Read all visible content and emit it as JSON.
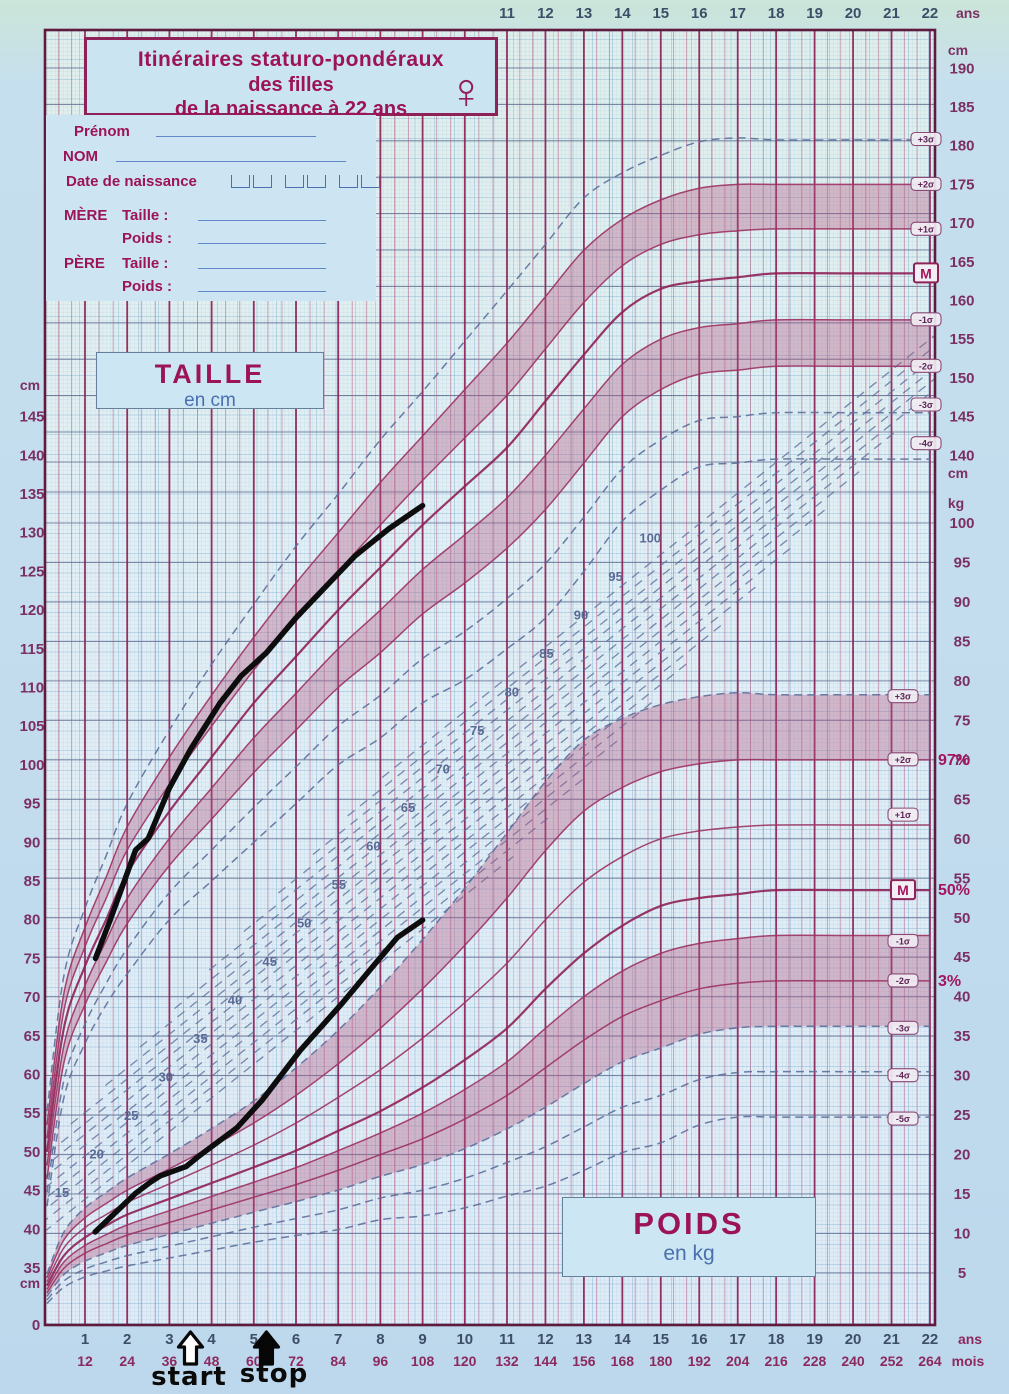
{
  "title": {
    "line1": "Itinéraires staturo-pondéraux",
    "line2": "des filles",
    "line3": "de la naissance à 22 ans",
    "gender_symbol": "♀"
  },
  "form": {
    "prenom": "Prénom",
    "nom": "NOM",
    "dob": "Date de naissance",
    "mere": "MÈRE",
    "pere": "PÈRE",
    "taille": "Taille :",
    "poids": "Poids :"
  },
  "sections": {
    "height": {
      "title": "TAILLE",
      "unit": "en cm"
    },
    "weight": {
      "title": "POIDS",
      "unit": "en kg"
    }
  },
  "annotations": {
    "start": "start",
    "stop": "stop"
  },
  "chart_data": {
    "type": "line",
    "chart_kind": "growth-reference-chart-girls-0-22y",
    "title": "Itinéraires staturo-pondéraux des filles de la naissance à 22 ans",
    "x_unit_years": "ans",
    "x_unit_months": "mois",
    "top_axis_years": [
      11,
      12,
      13,
      14,
      15,
      16,
      17,
      18,
      19,
      20,
      21,
      22
    ],
    "bottom_axis_years": [
      1,
      2,
      3,
      4,
      5,
      6,
      7,
      8,
      9,
      10,
      11,
      12,
      13,
      14,
      15,
      16,
      17,
      18,
      19,
      20,
      21,
      22
    ],
    "bottom_axis_months": [
      12,
      24,
      36,
      48,
      60,
      72,
      84,
      96,
      108,
      120,
      132,
      144,
      156,
      168,
      180,
      192,
      204,
      216,
      228,
      240,
      252,
      264
    ],
    "left_height_ticks_cm": [
      145,
      140,
      135,
      130,
      125,
      120,
      115,
      110,
      105,
      100,
      95,
      90,
      85,
      80,
      75,
      70,
      65,
      60,
      55,
      50,
      45,
      40,
      35
    ],
    "right_height_ticks_cm": [
      190,
      185,
      180,
      175,
      170,
      165,
      160,
      155,
      150,
      145,
      140
    ],
    "right_weight_ticks_kg": [
      100,
      95,
      90,
      85,
      80,
      75,
      70,
      65,
      60,
      55,
      50,
      45,
      40,
      35,
      30,
      25,
      20,
      15,
      10,
      5
    ],
    "unit_labels": {
      "cm": "cm",
      "kg": "kg",
      "origin": "0"
    },
    "diagonal_weight_guides_kg": [
      15,
      20,
      25,
      30,
      35,
      40,
      45,
      50,
      55,
      60,
      65,
      70,
      75,
      80,
      85,
      90,
      95,
      100
    ],
    "ages": [
      0,
      0.5,
      1,
      1.5,
      2,
      3,
      4,
      5,
      6,
      7,
      8,
      9,
      10,
      11,
      12,
      13,
      14,
      15,
      16,
      17,
      18,
      20,
      22
    ],
    "height_reference_cm": {
      "M": [
        50,
        66,
        74,
        80,
        86,
        94,
        101,
        108,
        114,
        120,
        125.5,
        131,
        136,
        141,
        147,
        153,
        158.5,
        161.5,
        162.5,
        163,
        163.5,
        163.5,
        163.5
      ],
      "plus2sigma": [
        53.5,
        70.5,
        79,
        85.5,
        92,
        101,
        109,
        116.5,
        123.5,
        130,
        136.5,
        142.5,
        148.5,
        154.5,
        160.5,
        166.5,
        170.5,
        173,
        174.5,
        175,
        175,
        175,
        175
      ],
      "minus2sigma": [
        46.5,
        61.5,
        69,
        74.5,
        79.5,
        87,
        93,
        99,
        104.5,
        110,
        114.5,
        119.5,
        123.5,
        128,
        133,
        139,
        145,
        148.5,
        150.5,
        151,
        151.5,
        151.5,
        151.5
      ]
    },
    "weight_reference_kg": {
      "M": [
        3.4,
        7.2,
        9.5,
        11,
        12.4,
        14.4,
        16.4,
        18.4,
        20.5,
        23,
        25.5,
        28.5,
        32,
        36,
        41,
        45.5,
        49,
        51.5,
        52.5,
        53,
        53.5,
        53.5,
        53.5
      ],
      "plus2sigma": [
        4.4,
        9.2,
        12,
        13.8,
        15.5,
        18.2,
        21,
        24,
        27.5,
        31.5,
        36,
        41,
        46.5,
        52.5,
        58.5,
        63.5,
        66.5,
        68.5,
        69.5,
        70,
        70,
        70,
        70
      ],
      "minus2sigma": [
        2.5,
        5.6,
        7.5,
        8.7,
        9.8,
        11.4,
        13,
        14.6,
        16.2,
        18,
        20,
        22,
        24.5,
        27.5,
        31,
        34.5,
        37.5,
        39.5,
        41,
        41.7,
        42,
        42,
        42
      ]
    },
    "height_end_labels": [
      {
        "text": "+3σ",
        "cm": 180.8
      },
      {
        "text": "+2σ",
        "cm": 175
      },
      {
        "text": "+1σ",
        "cm": 169.2
      },
      {
        "text": "M",
        "cm": 163.5,
        "main": true
      },
      {
        "text": "-1σ",
        "cm": 157.5
      },
      {
        "text": "-2σ",
        "cm": 151.5
      },
      {
        "text": "-3σ",
        "cm": 146.5
      },
      {
        "text": "-4σ",
        "cm": 141.5
      }
    ],
    "weight_end_labels": [
      {
        "text": "+3σ",
        "kg": 78
      },
      {
        "text": "+2σ",
        "kg": 70
      },
      {
        "text": "+1σ",
        "kg": 63
      },
      {
        "text": "M",
        "kg": 53.5,
        "main": true
      },
      {
        "text": "-1σ",
        "kg": 47
      },
      {
        "text": "-2σ",
        "kg": 42
      },
      {
        "text": "-3σ",
        "kg": 36
      },
      {
        "text": "-4σ",
        "kg": 30
      },
      {
        "text": "-5σ",
        "kg": 24.5
      }
    ],
    "percentile_labels": [
      {
        "text": "97%",
        "kg": 70
      },
      {
        "text": "50%",
        "kg": 53.5
      },
      {
        "text": "3%",
        "kg": 42
      }
    ],
    "patient_height_cm": [
      [
        1.25,
        75
      ],
      [
        1.6,
        80
      ],
      [
        2.2,
        89
      ],
      [
        2.5,
        90.5
      ],
      [
        3.0,
        97
      ],
      [
        3.5,
        102
      ],
      [
        4.2,
        108
      ],
      [
        4.7,
        111.5
      ],
      [
        5.3,
        114.5
      ],
      [
        6.0,
        119
      ],
      [
        6.7,
        123
      ],
      [
        7.4,
        127
      ],
      [
        8.2,
        130.5
      ],
      [
        9.0,
        133.5
      ]
    ],
    "patient_weight_kg": [
      [
        1.24,
        10.2
      ],
      [
        2.2,
        15.1
      ],
      [
        2.55,
        16.5
      ],
      [
        2.78,
        17.3
      ],
      [
        3.4,
        18.5
      ],
      [
        3.72,
        19.9
      ],
      [
        4.6,
        23.4
      ],
      [
        5.2,
        26.9
      ],
      [
        6.1,
        33.2
      ],
      [
        7.1,
        39.2
      ],
      [
        7.8,
        43.7
      ],
      [
        8.4,
        47.5
      ],
      [
        9.0,
        49.7
      ]
    ],
    "events": {
      "start_age_years": 3.5,
      "stop_age_years": 5.3
    }
  }
}
